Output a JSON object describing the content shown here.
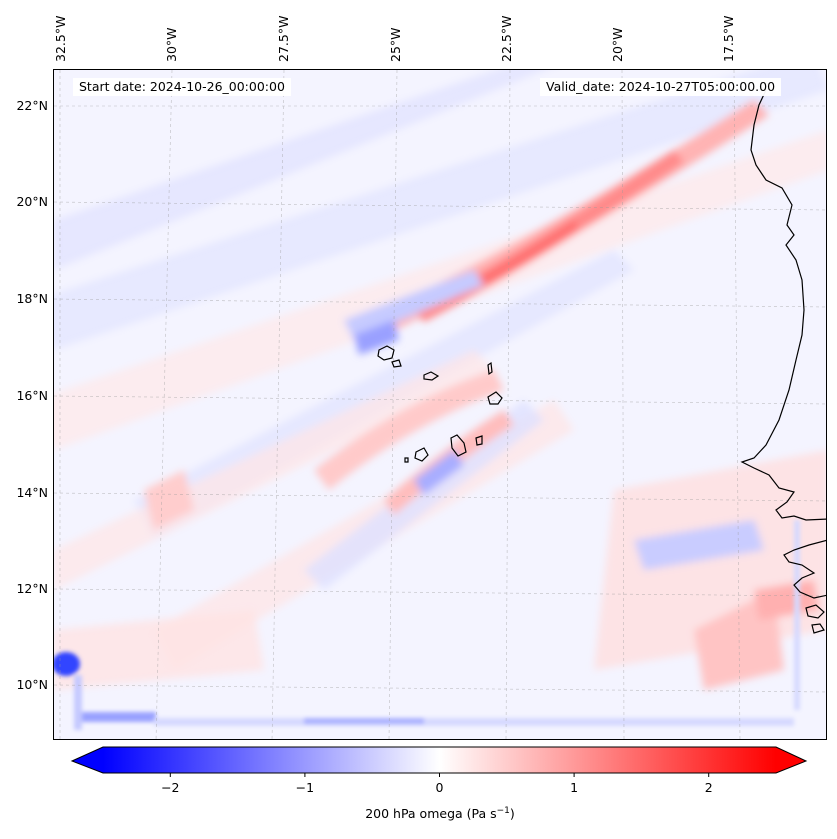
{
  "map": {
    "start_date": "Start date: 2024-10-26_00:00:00",
    "valid_date": "Valid_date: 2024-10-27T05:00:00.00",
    "lon_labels": [
      "32.5°W",
      "30°W",
      "27.5°W",
      "25°W",
      "22.5°W",
      "20°W",
      "17.5°W"
    ],
    "lat_labels": [
      "22°N",
      "20°N",
      "18°N",
      "16°N",
      "14°N",
      "12°N",
      "10°N"
    ],
    "extent": {
      "lon_min": -32.7,
      "lon_max": -15.6,
      "lat_min": 8.9,
      "lat_max": 22.8
    }
  },
  "colorbar": {
    "label_prefix": "200 hPa omega (Pa s",
    "label_exp": "−1",
    "label_suffix": ")",
    "ticks": [
      "−2",
      "−1",
      "0",
      "1",
      "2"
    ],
    "tick_values": [
      -2,
      -1,
      0,
      1,
      2
    ],
    "range": [
      -2.5,
      2.5
    ],
    "cmap": "bwr",
    "extend": "both"
  },
  "colors": {
    "neg": "#0000ff",
    "pos": "#ff0000",
    "mid": "#ffffff",
    "coast": "#000000"
  }
}
